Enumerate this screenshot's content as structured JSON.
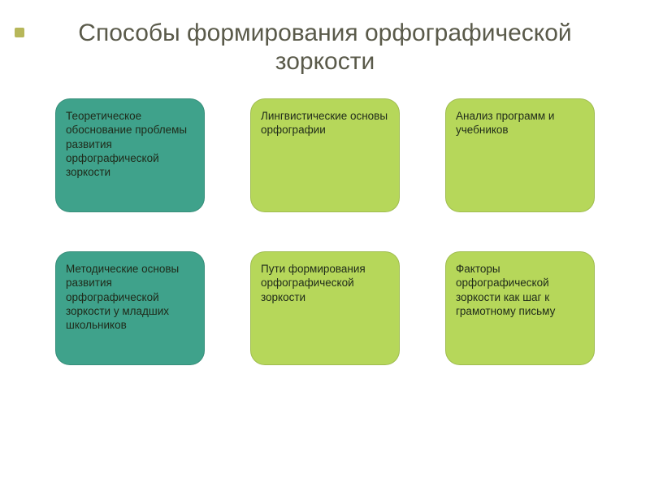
{
  "slide": {
    "background_color": "#ffffff",
    "title": "Способы формирования орфографической зоркости",
    "title_color": "#5a5a4a",
    "title_fontsize": 30,
    "bullet_color": "#b7b75a"
  },
  "card_style": {
    "fontsize": 13.5,
    "font_weight": "400",
    "text_color_dark": "#1f2a1a",
    "text_color_light": "#1f2a1a",
    "border_radius": 18
  },
  "palette": {
    "teal": "#3fa28b",
    "lime": "#b6d75a"
  },
  "cards": [
    {
      "text": "Теоретическое обоснование проблемы развития орфографической зоркости",
      "bg": "#3fa28b"
    },
    {
      "text": "Лингвистические основы орфографии",
      "bg": "#b6d75a"
    },
    {
      "text": "Анализ программ и учебников",
      "bg": "#b6d75a"
    },
    {
      "text": "Методические основы развития орфографической зоркости у младших школьников",
      "bg": "#3fa28b"
    },
    {
      "text": "Пути формирования орфографической зоркости",
      "bg": "#b6d75a"
    },
    {
      "text": "Факторы орфографической зоркости как шаг к грамотному письму",
      "bg": "#b6d75a"
    }
  ]
}
